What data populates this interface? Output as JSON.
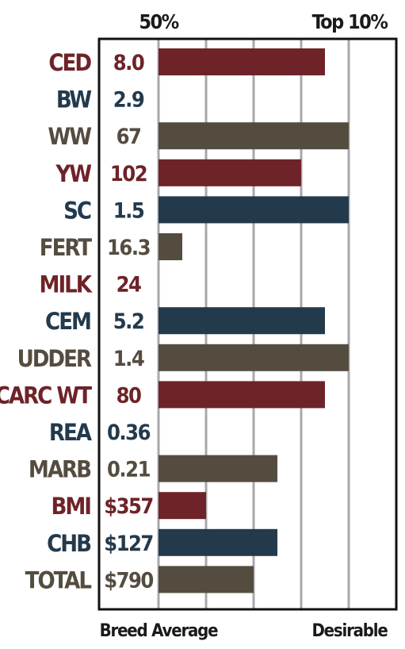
{
  "colors": {
    "maroon": "#6e2328",
    "navy": "#233a4d",
    "brown": "#554c40",
    "gridline": "#a8a8ab",
    "frame": "#111111"
  },
  "chart_data": {
    "type": "bar",
    "orientation": "horizontal",
    "top_labels": {
      "left": "50%",
      "right": "Top 10%"
    },
    "bottom_labels": {
      "left": "Breed Average",
      "right": "Desirable"
    },
    "grid": true,
    "xlim": [
      0,
      5
    ],
    "gridlines": [
      0,
      1,
      2,
      3,
      4
    ],
    "rows": [
      {
        "trait": "CED",
        "value_text": "8.0",
        "bar": 3.5,
        "color": "maroon"
      },
      {
        "trait": "BW",
        "value_text": "2.9",
        "bar": 0,
        "color": "navy"
      },
      {
        "trait": "WW",
        "value_text": "67",
        "bar": 4.0,
        "color": "brown"
      },
      {
        "trait": "YW",
        "value_text": "102",
        "bar": 3.0,
        "color": "maroon"
      },
      {
        "trait": "SC",
        "value_text": "1.5",
        "bar": 4.0,
        "color": "navy"
      },
      {
        "trait": "FERT",
        "value_text": "16.3",
        "bar": 0.5,
        "color": "brown"
      },
      {
        "trait": "MILK",
        "value_text": "24",
        "bar": 0,
        "color": "maroon"
      },
      {
        "trait": "CEM",
        "value_text": "5.2",
        "bar": 3.5,
        "color": "navy"
      },
      {
        "trait": "UDDER",
        "value_text": "1.4",
        "bar": 4.0,
        "color": "brown"
      },
      {
        "trait": "CARC WT",
        "value_text": "80",
        "bar": 3.5,
        "color": "maroon"
      },
      {
        "trait": "REA",
        "value_text": "0.36",
        "bar": 0,
        "color": "navy"
      },
      {
        "trait": "MARB",
        "value_text": "0.21",
        "bar": 2.5,
        "color": "brown"
      },
      {
        "trait": "BMI",
        "value_text": "$357",
        "bar": 1.0,
        "color": "maroon"
      },
      {
        "trait": "CHB",
        "value_text": "$127",
        "bar": 2.5,
        "color": "navy"
      },
      {
        "trait": "TOTAL",
        "value_text": "$790",
        "bar": 2.0,
        "color": "brown"
      }
    ]
  }
}
